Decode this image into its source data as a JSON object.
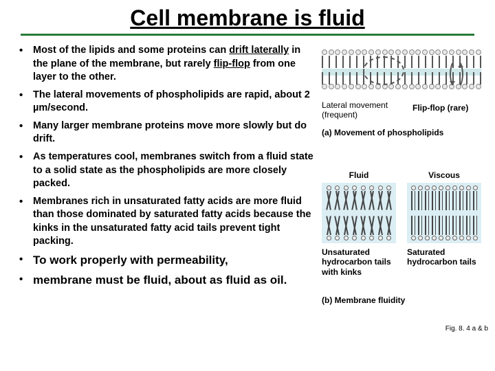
{
  "title": "Cell membrane is fluid",
  "bullets": [
    {
      "html": "Most of the lipids and some proteins can <span class='underline'>drift laterally</span> in the plane of the membrane, but rarely <span class='underline'>flip-flop</span> from one layer to the other."
    },
    {
      "html": "The lateral movements of phospholipids are rapid, about <span class='hl'>2 µm/second</span>."
    },
    {
      "html": "Many larger membrane proteins move more slowly but do drift."
    },
    {
      "html": "As temperatures cool, membranes switch from a fluid state to a solid state as the phospholipids are more closely packed."
    },
    {
      "html": "Membranes <span class='hl'>rich in unsaturated fatty acids</span> are more fluid than those dominated by <span class='hl'>saturated fatty acids</span> because the kinks in the unsaturated fatty acid tails prevent tight packing."
    },
    {
      "html": "To work properly with permeability,",
      "em": true
    },
    {
      "html": "membrane must be fluid, about as fluid as oil.",
      "em": true
    }
  ],
  "figA": {
    "lateral_label_line1": "Lateral movement",
    "lateral_label_line2": "(frequent)",
    "flipflop_label": "Flip-flop (rare)",
    "caption": "(a) Movement of phospholipids",
    "lipid_count": 24,
    "colors": {
      "head_fill": "#e8e8e8",
      "head_stroke": "#888888",
      "tail": "#555555",
      "mid_band": "#cfe8ea",
      "arrow": "#555555"
    }
  },
  "figB": {
    "panels": [
      {
        "title": "Fluid",
        "caption": "Unsaturated hydrocarbon tails with kinks",
        "kinked": true,
        "lipids_per_row": 8
      },
      {
        "title": "Viscous",
        "caption": "Saturated hydrocarbon tails",
        "kinked": false,
        "lipids_per_row": 10
      }
    ],
    "caption": "(b) Membrane fluidity",
    "box_bg": "#dbeef4"
  },
  "fig_ref": "Fig. 8. 4 a & b"
}
